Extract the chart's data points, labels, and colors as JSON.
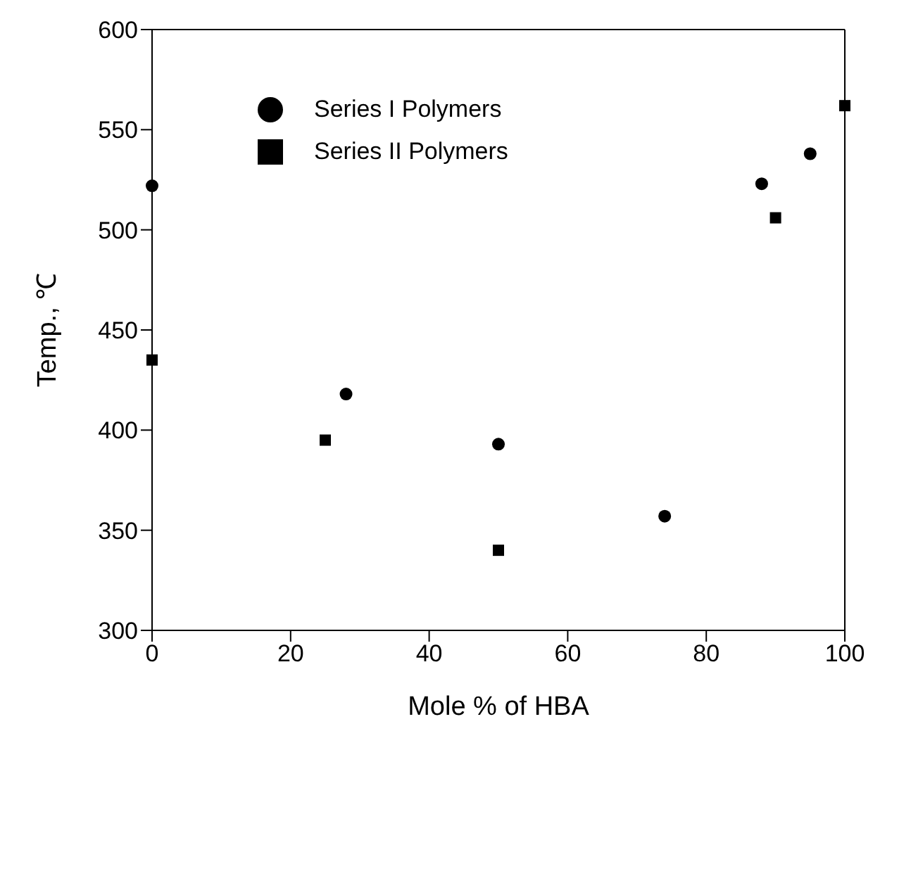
{
  "chart_data": {
    "type": "scatter",
    "xlabel": "Mole % of HBA",
    "ylabel": "Temp., ℃",
    "xlim": [
      0,
      100
    ],
    "xticks": [
      0,
      20,
      40,
      60,
      80,
      100
    ],
    "ylim": [
      300,
      600
    ],
    "yticks": [
      300,
      350,
      400,
      450,
      500,
      550,
      600
    ],
    "legend": "top left",
    "series": [
      {
        "name": "Series I Polymers",
        "color": "#000000",
        "marker": "circle",
        "x": [
          0,
          28,
          50,
          74,
          88,
          95
        ],
        "values": [
          522,
          418,
          393,
          357,
          523,
          538
        ]
      },
      {
        "name": "Series II Polymers",
        "color": "#000000",
        "marker": "square",
        "x": [
          0,
          25,
          50,
          90,
          100
        ],
        "values": [
          435,
          395,
          340,
          506,
          562
        ]
      }
    ]
  }
}
